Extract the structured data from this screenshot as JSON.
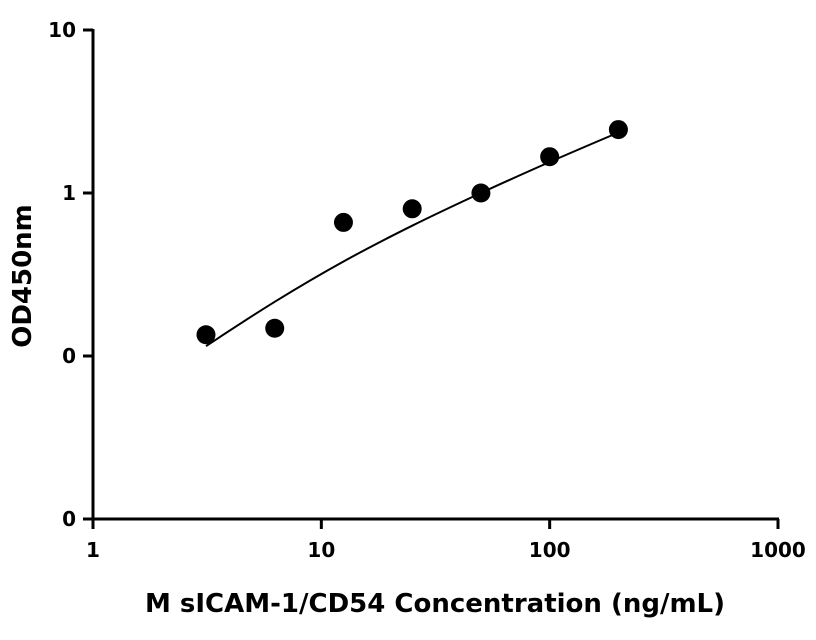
{
  "chart_data": {
    "type": "scatter",
    "x_scale": "log",
    "y_scale": "log",
    "xlabel": "M sICAM-1/CD54 Concentration (ng/mL)",
    "ylabel": "OD450nm",
    "xlim": [
      1,
      1000
    ],
    "ylim": [
      0.01,
      10
    ],
    "x_ticks": [
      1,
      10,
      100,
      1000
    ],
    "x_tick_labels": [
      "1",
      "10",
      "100",
      "1000"
    ],
    "y_ticks": [
      0.01,
      0.1,
      1,
      10
    ],
    "y_tick_labels": [
      "0",
      "0",
      "1",
      "10"
    ],
    "grid": false,
    "series": [
      {
        "x": [
          3.125,
          6.25,
          12.5,
          25,
          50,
          100,
          200
        ],
        "y": [
          0.135,
          0.148,
          0.66,
          0.8,
          1.0,
          1.67,
          2.45
        ]
      }
    ],
    "fit_curve": {
      "x": [
        3.125,
        6.25,
        12.5,
        25,
        50,
        100,
        200
      ],
      "y": [
        0.115,
        0.215,
        0.38,
        0.63,
        1.0,
        1.55,
        2.35
      ]
    },
    "colors": {
      "marker": "#000000",
      "axis": "#000000"
    }
  }
}
